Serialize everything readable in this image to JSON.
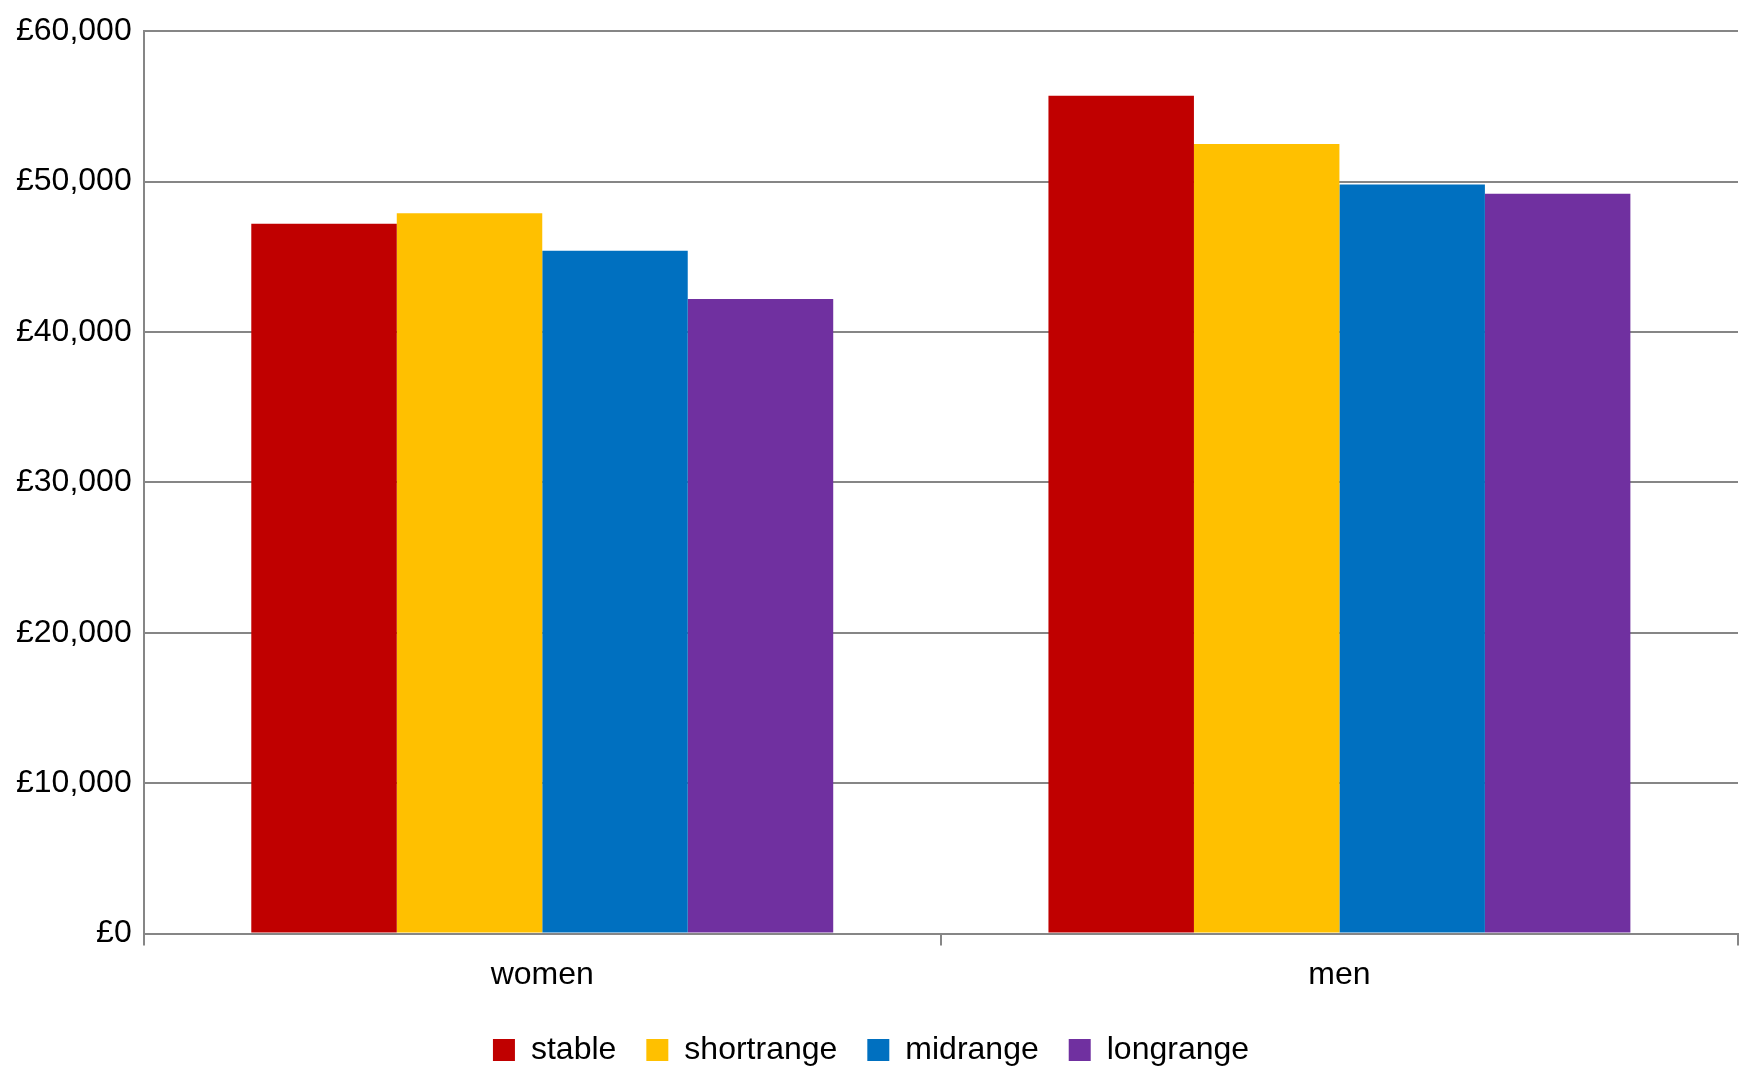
{
  "chart_data": {
    "type": "bar",
    "categories": [
      "women",
      "men"
    ],
    "series": [
      {
        "name": "stable",
        "color": "#c00000",
        "values": [
          47200,
          55700
        ]
      },
      {
        "name": "shortrange",
        "color": "#ffc000",
        "values": [
          47900,
          52500
        ]
      },
      {
        "name": "midrange",
        "color": "#0070c0",
        "values": [
          45400,
          49800
        ]
      },
      {
        "name": "longrange",
        "color": "#7030a0",
        "values": [
          42200,
          49200
        ]
      }
    ],
    "ylim": [
      0,
      60000
    ],
    "yticks": [
      {
        "value": 0,
        "label": "£0"
      },
      {
        "value": 10000,
        "label": "£10,000"
      },
      {
        "value": 20000,
        "label": "£20,000"
      },
      {
        "value": 30000,
        "label": "£30,000"
      },
      {
        "value": 40000,
        "label": "£40,000"
      },
      {
        "value": 50000,
        "label": "£50,000"
      },
      {
        "value": 60000,
        "label": "£60,000"
      }
    ],
    "grid": "y",
    "legend": "bottom"
  }
}
